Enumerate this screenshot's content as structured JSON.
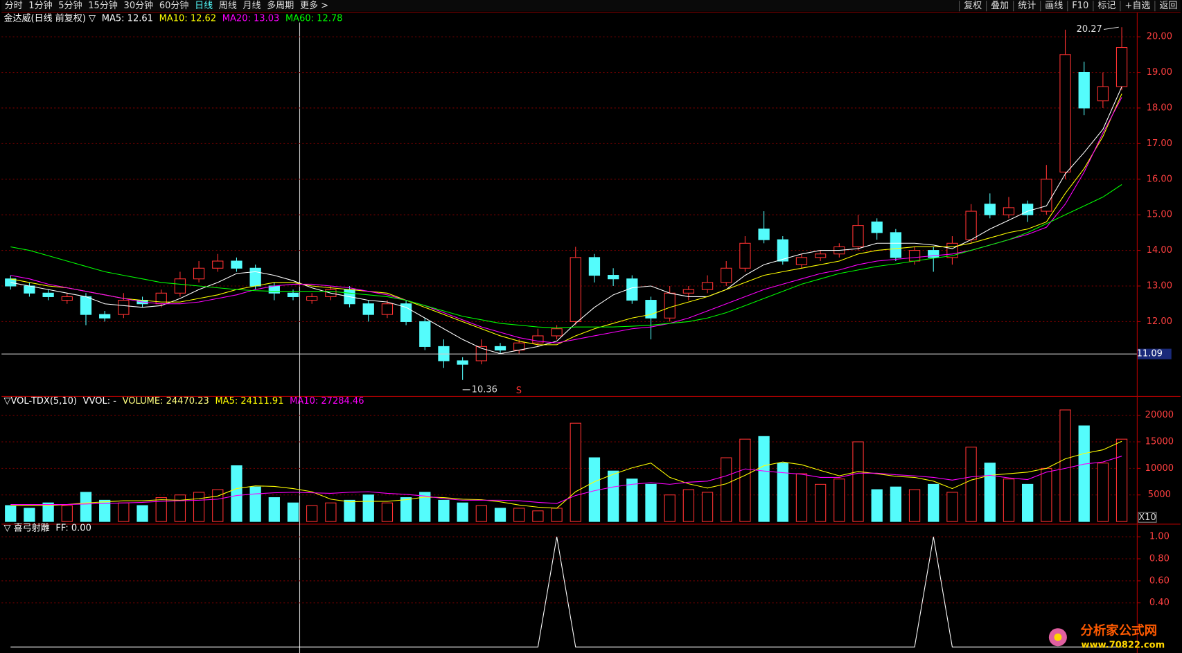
{
  "ui": {
    "menu": [
      "分时",
      "1分钟",
      "5分钟",
      "15分钟",
      "30分钟",
      "60分钟",
      "日线",
      "周线",
      "月线",
      "多周期",
      "更多 >"
    ],
    "active_menu": "日线",
    "buttons": [
      "复权",
      "叠加",
      "统计",
      "画线",
      "F10",
      "标记",
      "+自选",
      "返回"
    ],
    "watermark": "分析家公式网",
    "watermark_url": "www.70822.com"
  },
  "chart_data": [
    {
      "type": "candlestick",
      "title": "金达威(日线 前复权) ▽",
      "up_color": "#ff3232",
      "down_color": "#54fcfc",
      "grid": true,
      "categories": [
        null,
        null,
        null,
        null,
        null,
        null,
        null,
        null,
        null,
        null,
        null,
        null,
        null,
        null,
        null,
        null,
        null,
        null,
        null,
        null,
        null,
        null,
        null,
        null,
        null,
        null,
        null,
        null,
        null,
        null,
        null,
        null,
        null,
        null,
        null,
        null,
        null,
        null,
        null,
        null,
        null,
        null,
        null,
        null,
        null,
        null,
        null,
        null,
        null,
        null,
        null,
        null,
        null,
        null,
        null,
        null,
        null,
        null,
        null,
        null
      ],
      "open": [
        13.2,
        13.0,
        12.8,
        12.6,
        12.7,
        12.2,
        12.2,
        12.6,
        12.5,
        12.8,
        13.2,
        13.5,
        13.7,
        13.5,
        13.0,
        12.8,
        12.6,
        12.7,
        12.9,
        12.5,
        12.2,
        12.5,
        12.0,
        11.3,
        10.9,
        10.9,
        11.3,
        11.2,
        11.4,
        11.6,
        12.0,
        13.8,
        13.3,
        13.2,
        12.6,
        12.1,
        12.8,
        12.9,
        13.1,
        13.5,
        14.6,
        14.3,
        13.6,
        13.8,
        13.9,
        14.1,
        14.8,
        14.5,
        13.7,
        14.0,
        13.8,
        14.3,
        15.3,
        15.0,
        15.3,
        15.1,
        16.2,
        19.0,
        18.2,
        18.6
      ],
      "high": [
        13.3,
        13.1,
        12.9,
        12.8,
        12.8,
        12.3,
        12.8,
        12.7,
        12.9,
        13.4,
        13.7,
        13.9,
        13.8,
        13.6,
        13.1,
        12.9,
        12.8,
        13.0,
        13.0,
        12.6,
        12.6,
        12.6,
        12.1,
        11.5,
        11.0,
        11.5,
        11.4,
        11.5,
        11.8,
        11.9,
        14.1,
        13.9,
        13.5,
        13.3,
        12.7,
        13.0,
        13.0,
        13.3,
        13.7,
        14.4,
        15.1,
        14.4,
        13.9,
        14.0,
        14.2,
        15.0,
        14.9,
        14.6,
        14.1,
        14.1,
        14.4,
        15.3,
        15.6,
        15.5,
        15.4,
        16.4,
        20.2,
        19.3,
        19.0,
        20.27
      ],
      "low": [
        12.9,
        12.7,
        12.6,
        12.5,
        11.9,
        12.0,
        12.1,
        12.4,
        12.4,
        12.7,
        13.1,
        13.4,
        13.4,
        12.9,
        12.6,
        12.6,
        12.5,
        12.6,
        12.4,
        12.0,
        12.1,
        11.9,
        11.2,
        10.7,
        10.36,
        10.8,
        11.1,
        11.1,
        11.3,
        11.5,
        11.9,
        13.1,
        13.0,
        12.5,
        11.5,
        12.0,
        12.6,
        12.8,
        13.0,
        13.4,
        14.2,
        13.6,
        13.5,
        13.7,
        13.8,
        14.0,
        14.3,
        13.7,
        13.6,
        13.4,
        13.6,
        14.2,
        14.9,
        14.9,
        14.8,
        15.0,
        16.0,
        17.8,
        18.0,
        18.5
      ],
      "close": [
        13.0,
        12.8,
        12.7,
        12.7,
        12.2,
        12.1,
        12.6,
        12.5,
        12.8,
        13.2,
        13.5,
        13.7,
        13.5,
        13.0,
        12.8,
        12.7,
        12.7,
        12.9,
        12.5,
        12.2,
        12.5,
        12.0,
        11.3,
        10.9,
        10.8,
        11.3,
        11.2,
        11.4,
        11.6,
        11.8,
        13.8,
        13.3,
        13.2,
        12.6,
        12.1,
        12.8,
        12.9,
        13.1,
        13.5,
        14.2,
        14.3,
        13.7,
        13.8,
        13.9,
        14.1,
        14.7,
        14.5,
        13.8,
        14.0,
        13.8,
        14.2,
        15.1,
        15.0,
        15.2,
        15.0,
        16.0,
        19.5,
        18.0,
        18.6,
        19.7
      ],
      "series": [
        {
          "name": "MA5: 12.61",
          "color": "#ffffff",
          "values": [
            13.1,
            13.0,
            12.9,
            12.8,
            12.7,
            12.5,
            12.45,
            12.4,
            12.45,
            12.65,
            12.9,
            13.1,
            13.35,
            13.4,
            13.3,
            13.15,
            12.95,
            12.8,
            12.7,
            12.6,
            12.55,
            12.4,
            12.1,
            11.8,
            11.5,
            11.25,
            11.1,
            11.2,
            11.3,
            11.45,
            11.95,
            12.4,
            12.75,
            12.95,
            13.0,
            12.8,
            12.7,
            12.7,
            12.9,
            13.3,
            13.6,
            13.75,
            13.9,
            14.0,
            14.0,
            14.05,
            14.2,
            14.2,
            14.2,
            14.15,
            14.05,
            14.3,
            14.6,
            14.85,
            15.1,
            15.25,
            16.15,
            16.75,
            17.4,
            18.6
          ]
        },
        {
          "name": "MA10: 12.62",
          "color": "#ffff00",
          "values": [
            13.2,
            13.1,
            13.0,
            12.95,
            12.85,
            12.75,
            12.65,
            12.6,
            12.55,
            12.55,
            12.65,
            12.75,
            12.9,
            13.0,
            13.1,
            13.1,
            13.0,
            12.95,
            12.9,
            12.85,
            12.8,
            12.6,
            12.4,
            12.2,
            12.0,
            11.8,
            11.6,
            11.45,
            11.35,
            11.35,
            11.6,
            11.8,
            11.95,
            12.1,
            12.2,
            12.4,
            12.55,
            12.7,
            12.9,
            13.1,
            13.3,
            13.4,
            13.5,
            13.6,
            13.7,
            13.9,
            14.0,
            14.05,
            14.1,
            14.1,
            14.1,
            14.2,
            14.35,
            14.5,
            14.6,
            14.8,
            15.6,
            16.3,
            17.2,
            18.4
          ]
        },
        {
          "name": "MA20: 13.03",
          "color": "#ff00ff",
          "values": [
            13.3,
            13.2,
            13.05,
            12.95,
            12.85,
            12.75,
            12.65,
            12.55,
            12.5,
            12.5,
            12.55,
            12.65,
            12.75,
            12.9,
            13.0,
            13.05,
            13.05,
            13.0,
            12.95,
            12.85,
            12.75,
            12.6,
            12.45,
            12.25,
            12.05,
            11.85,
            11.7,
            11.55,
            11.45,
            11.4,
            11.5,
            11.6,
            11.7,
            11.8,
            11.85,
            11.95,
            12.1,
            12.3,
            12.5,
            12.7,
            12.9,
            13.05,
            13.2,
            13.35,
            13.45,
            13.6,
            13.7,
            13.75,
            13.8,
            13.85,
            13.9,
            14.0,
            14.15,
            14.3,
            14.45,
            14.65,
            15.3,
            16.2,
            17.3,
            18.3
          ]
        },
        {
          "name": "MA60: 12.78",
          "color": "#00ff00",
          "values": [
            14.1,
            14.0,
            13.85,
            13.7,
            13.55,
            13.4,
            13.3,
            13.2,
            13.1,
            13.05,
            13.0,
            12.95,
            12.9,
            12.87,
            12.85,
            12.85,
            12.85,
            12.85,
            12.8,
            12.75,
            12.7,
            12.6,
            12.45,
            12.3,
            12.15,
            12.05,
            11.95,
            11.9,
            11.85,
            11.82,
            11.85,
            11.85,
            11.85,
            11.87,
            11.9,
            11.95,
            12.0,
            12.1,
            12.25,
            12.45,
            12.65,
            12.85,
            13.05,
            13.2,
            13.35,
            13.45,
            13.55,
            13.62,
            13.7,
            13.78,
            13.85,
            14.0,
            14.15,
            14.3,
            14.5,
            14.75,
            15.0,
            15.25,
            15.5,
            15.85
          ]
        }
      ],
      "ylim": [
        9.91,
        20.4
      ],
      "yticks": [
        {
          "value": 12,
          "label": "12.00"
        },
        {
          "value": 13,
          "label": "13.00"
        },
        {
          "value": 14,
          "label": "14.00"
        },
        {
          "value": 15,
          "label": "15.00"
        },
        {
          "value": 16,
          "label": "16.00"
        },
        {
          "value": 17,
          "label": "17.00"
        },
        {
          "value": 18,
          "label": "18.00"
        },
        {
          "value": 19,
          "label": "19.00"
        },
        {
          "value": 20,
          "label": "20.00"
        }
      ],
      "max_label": "20.27",
      "min_label": "10.36",
      "signal_label": "S",
      "price_line": {
        "value": 11.09,
        "label": "11.09"
      }
    },
    {
      "type": "bar",
      "title": "▽VOL-TDX(5,10)",
      "subtitle": "VVOL: -",
      "volume_label": "VOLUME: 24470.23",
      "volume_color": "#ffff80",
      "grid": true,
      "values": [
        3000,
        2500,
        3500,
        3000,
        5500,
        4000,
        3500,
        3000,
        4500,
        5000,
        5500,
        6000,
        10500,
        6500,
        4500,
        3500,
        3000,
        3500,
        4000,
        5000,
        3500,
        4500,
        5500,
        4000,
        3500,
        3000,
        2500,
        2500,
        2000,
        2500,
        18500,
        12000,
        9500,
        8000,
        7000,
        5000,
        6000,
        5500,
        12000,
        15500,
        16000,
        11000,
        9000,
        7000,
        8000,
        15000,
        6000,
        6500,
        6000,
        7000,
        5500,
        14000,
        11000,
        8000,
        7000,
        10000,
        21000,
        18000,
        11000,
        15500
      ],
      "series": [
        {
          "name": "MA5: 24111.91",
          "color": "#ffff00",
          "values": [
            3000,
            3000,
            3000,
            3200,
            3500,
            3700,
            3900,
            3900,
            4100,
            4000,
            4300,
            4800,
            6200,
            6700,
            6600,
            6200,
            5600,
            4200,
            3700,
            3800,
            3800,
            4100,
            4600,
            4500,
            4200,
            4100,
            3700,
            3100,
            2700,
            2500,
            5600,
            7500,
            8900,
            10100,
            11000,
            8300,
            7100,
            6300,
            7100,
            8700,
            10500,
            11200,
            10700,
            9600,
            8600,
            9400,
            9000,
            8500,
            8300,
            7600,
            6200,
            7800,
            8700,
            9000,
            9300,
            10000,
            11800,
            12800,
            13500,
            15100
          ]
        },
        {
          "name": "MA10: 27284.46",
          "color": "#ff00ff",
          "values": [
            3200,
            3200,
            3200,
            3200,
            3300,
            3400,
            3500,
            3600,
            3800,
            3900,
            4000,
            4200,
            4900,
            5200,
            5400,
            5500,
            5400,
            5300,
            5500,
            5600,
            5300,
            5100,
            4800,
            4300,
            4000,
            4000,
            4000,
            3900,
            3600,
            3400,
            4900,
            5800,
            6500,
            7000,
            7300,
            7000,
            7400,
            7600,
            8600,
            9900,
            9500,
            9200,
            8900,
            8300,
            8300,
            9100,
            9100,
            8800,
            8600,
            8300,
            7800,
            8400,
            8700,
            8200,
            7900,
            9300,
            10000,
            10800,
            11200,
            12300
          ]
        }
      ],
      "ylim": [
        0,
        23000
      ],
      "yticks": [
        5000,
        10000,
        15000,
        20000
      ],
      "unit_label": "X10"
    },
    {
      "type": "line",
      "title": "▽ 喜弓射雕",
      "value_label": "FF: 0.00",
      "color": "#ffffff",
      "values": [
        0,
        0,
        0,
        0,
        0,
        0,
        0,
        0,
        0,
        0,
        0,
        0,
        0,
        0,
        0,
        0,
        0,
        0,
        0,
        0,
        0,
        0,
        0,
        0,
        0,
        0,
        0,
        0,
        0,
        1,
        0,
        0,
        0,
        0,
        0,
        0,
        0,
        0,
        0,
        0,
        0,
        0,
        0,
        0,
        0,
        0,
        0,
        0,
        0,
        1,
        0,
        0,
        0,
        0,
        0,
        0,
        0,
        0,
        0,
        0
      ],
      "ylim": [
        0,
        1.11
      ],
      "yticks": [
        {
          "value": 0.4,
          "label": "0.40"
        },
        {
          "value": 0.6,
          "label": "0.60"
        },
        {
          "value": 0.8,
          "label": "0.80"
        },
        {
          "value": 1,
          "label": "1.00"
        }
      ]
    }
  ]
}
